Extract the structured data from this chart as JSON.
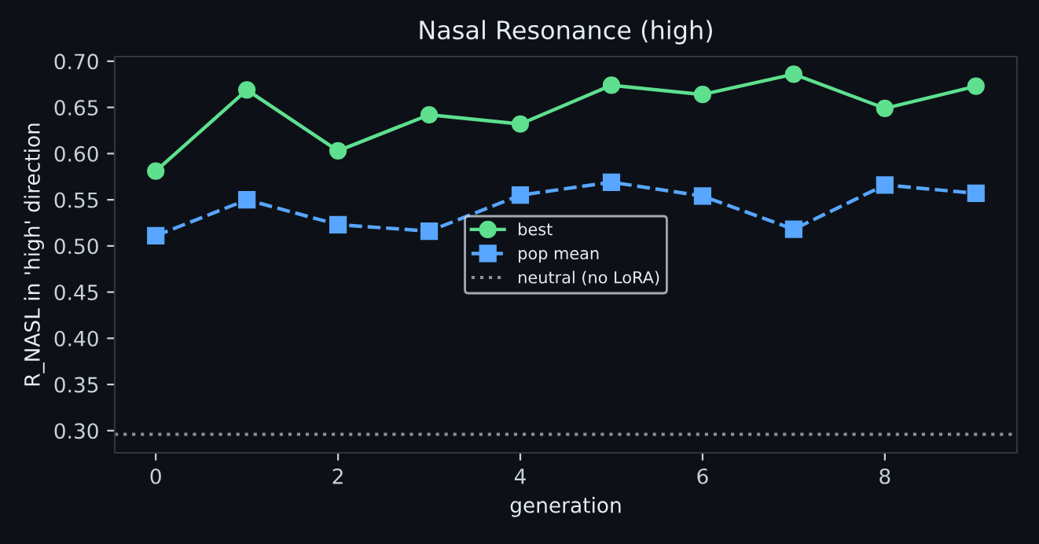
{
  "chart_data": {
    "type": "line",
    "title": "Nasal Resonance (high)",
    "xlabel": "generation",
    "ylabel": "R_NASL in 'high' direction",
    "x": [
      0,
      1,
      2,
      3,
      4,
      5,
      6,
      7,
      8,
      9
    ],
    "series": [
      {
        "name": "best",
        "color": "#5ee08f",
        "marker": "circle",
        "line_style": "solid",
        "values": [
          0.581,
          0.669,
          0.603,
          0.642,
          0.632,
          0.674,
          0.664,
          0.686,
          0.649,
          0.673
        ]
      },
      {
        "name": "pop mean",
        "color": "#58a6ff",
        "marker": "square",
        "line_style": "dashed",
        "values": [
          0.511,
          0.55,
          0.523,
          0.516,
          0.555,
          0.569,
          0.554,
          0.518,
          0.566,
          0.557
        ]
      }
    ],
    "ref_lines": [
      {
        "axis": "y",
        "value": 0.296,
        "label": "neutral (no LoRA)",
        "color": "#8b8f96",
        "line_style": "dotted"
      }
    ],
    "xlim": [
      -0.45,
      9.45
    ],
    "ylim": [
      0.276,
      0.705
    ],
    "xticks": [
      0,
      2,
      4,
      6,
      8
    ],
    "yticks": [
      {
        "value": 0.3,
        "label": "0.30"
      },
      0.35,
      {
        "value": 0.4,
        "label": "0.40"
      },
      0.45,
      {
        "value": 0.5,
        "label": "0.50"
      },
      0.55,
      {
        "value": 0.6,
        "label": "0.60"
      },
      0.65,
      {
        "value": 0.7,
        "label": "0.70"
      }
    ],
    "grid": false,
    "legend": "center"
  }
}
